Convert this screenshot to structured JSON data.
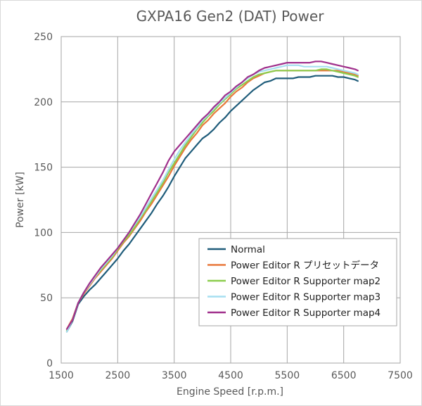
{
  "chart_data": {
    "type": "line",
    "title": "GXPA16 Gen2 (DAT) Power",
    "xlabel": "Engine Speed [r.p.m.]",
    "ylabel": "Power [kW]",
    "xlim": [
      1500,
      7500
    ],
    "ylim": [
      0,
      250
    ],
    "xticks": [
      1500,
      2500,
      3500,
      4500,
      5500,
      6500,
      7500
    ],
    "yticks": [
      0,
      50,
      100,
      150,
      200,
      250
    ],
    "grid": true,
    "legend_position": "bottom-right",
    "series": [
      {
        "name": "Normal",
        "color": "#1f5c7a",
        "x": [
          1600,
          1700,
          1800,
          1900,
          2000,
          2100,
          2200,
          2300,
          2400,
          2500,
          2600,
          2700,
          2800,
          2900,
          3000,
          3100,
          3200,
          3300,
          3400,
          3500,
          3600,
          3700,
          3800,
          3900,
          4000,
          4100,
          4200,
          4300,
          4400,
          4500,
          4600,
          4700,
          4800,
          4900,
          5000,
          5100,
          5200,
          5300,
          5400,
          5500,
          5600,
          5700,
          5800,
          5900,
          6000,
          6100,
          6200,
          6300,
          6400,
          6500,
          6600,
          6700,
          6750
        ],
        "y": [
          24,
          32,
          45,
          51,
          56,
          60,
          65,
          70,
          75,
          80,
          86,
          91,
          97,
          103,
          109,
          115,
          122,
          128,
          135,
          143,
          150,
          157,
          162,
          167,
          172,
          175,
          179,
          184,
          188,
          193,
          197,
          201,
          205,
          209,
          212,
          215,
          216,
          218,
          218,
          218,
          218,
          219,
          219,
          219,
          220,
          220,
          220,
          220,
          219,
          219,
          218,
          217,
          216
        ]
      },
      {
        "name": "Power Editor R プリセットデータ",
        "color": "#e8793b",
        "x": [
          1600,
          1700,
          1800,
          1900,
          2000,
          2100,
          2200,
          2300,
          2400,
          2500,
          2600,
          2700,
          2800,
          2900,
          3000,
          3100,
          3200,
          3300,
          3400,
          3500,
          3600,
          3700,
          3800,
          3900,
          4000,
          4100,
          4200,
          4300,
          4400,
          4500,
          4600,
          4700,
          4800,
          4900,
          5000,
          5100,
          5200,
          5300,
          5400,
          5500,
          5600,
          5700,
          5800,
          5900,
          6000,
          6100,
          6200,
          6300,
          6400,
          6500,
          6600,
          6700,
          6750
        ],
        "y": [
          26,
          34,
          46,
          53,
          59,
          65,
          70,
          75,
          80,
          86,
          92,
          97,
          103,
          109,
          116,
          122,
          129,
          136,
          143,
          151,
          158,
          165,
          171,
          176,
          182,
          186,
          191,
          195,
          199,
          204,
          208,
          211,
          215,
          218,
          220,
          222,
          223,
          224,
          224,
          224,
          224,
          224,
          224,
          224,
          224,
          224,
          224,
          224,
          224,
          223,
          222,
          221,
          220
        ]
      },
      {
        "name": "Power Editor R Supporter map2",
        "color": "#8ccd4e",
        "x": [
          1600,
          1700,
          1800,
          1900,
          2000,
          2100,
          2200,
          2300,
          2400,
          2500,
          2600,
          2700,
          2800,
          2900,
          3000,
          3100,
          3200,
          3300,
          3400,
          3500,
          3600,
          3700,
          3800,
          3900,
          4000,
          4100,
          4200,
          4300,
          4400,
          4500,
          4600,
          4700,
          4800,
          4900,
          5000,
          5100,
          5200,
          5300,
          5400,
          5500,
          5600,
          5700,
          5800,
          5900,
          6000,
          6100,
          6200,
          6300,
          6400,
          6500,
          6600,
          6700,
          6750
        ],
        "y": [
          25,
          33,
          46,
          54,
          60,
          66,
          71,
          76,
          81,
          87,
          93,
          98,
          104,
          111,
          117,
          124,
          131,
          138,
          146,
          153,
          160,
          167,
          173,
          179,
          184,
          189,
          193,
          198,
          202,
          206,
          210,
          213,
          216,
          219,
          221,
          222,
          223,
          224,
          224,
          224,
          224,
          224,
          224,
          224,
          224,
          225,
          225,
          224,
          223,
          222,
          221,
          220,
          219
        ]
      },
      {
        "name": "Power Editor R Supporter map3",
        "color": "#a6dff0",
        "x": [
          1600,
          1700,
          1800,
          1900,
          2000,
          2100,
          2200,
          2300,
          2400,
          2500,
          2600,
          2700,
          2800,
          2900,
          3000,
          3100,
          3200,
          3300,
          3400,
          3500,
          3600,
          3700,
          3800,
          3900,
          4000,
          4100,
          4200,
          4300,
          4400,
          4500,
          4600,
          4700,
          4800,
          4900,
          5000,
          5100,
          5200,
          5300,
          5400,
          5500,
          5600,
          5700,
          5800,
          5900,
          6000,
          6100,
          6200,
          6300,
          6400,
          6500,
          6600,
          6700,
          6750
        ],
        "y": [
          24,
          33,
          46,
          54,
          60,
          66,
          72,
          77,
          82,
          88,
          94,
          100,
          106,
          112,
          119,
          126,
          133,
          140,
          148,
          156,
          163,
          169,
          175,
          180,
          186,
          190,
          195,
          199,
          203,
          207,
          211,
          215,
          218,
          221,
          223,
          224,
          225,
          226,
          227,
          228,
          228,
          228,
          227,
          227,
          227,
          227,
          227,
          226,
          225,
          224,
          223,
          222,
          221
        ]
      },
      {
        "name": "Power Editor R Supporter map4",
        "color": "#a0308c",
        "x": [
          1600,
          1700,
          1800,
          1900,
          2000,
          2100,
          2200,
          2300,
          2400,
          2500,
          2600,
          2700,
          2800,
          2900,
          3000,
          3100,
          3200,
          3300,
          3400,
          3500,
          3600,
          3700,
          3800,
          3900,
          4000,
          4100,
          4200,
          4300,
          4400,
          4500,
          4600,
          4700,
          4800,
          4900,
          5000,
          5100,
          5200,
          5300,
          5400,
          5500,
          5600,
          5700,
          5800,
          5900,
          6000,
          6100,
          6200,
          6300,
          6400,
          6500,
          6600,
          6700,
          6750
        ],
        "y": [
          26,
          33,
          46,
          54,
          61,
          67,
          73,
          78,
          83,
          88,
          94,
          100,
          107,
          114,
          122,
          130,
          138,
          146,
          155,
          162,
          167,
          172,
          177,
          182,
          187,
          191,
          196,
          200,
          205,
          208,
          212,
          215,
          219,
          221,
          224,
          226,
          227,
          228,
          229,
          230,
          230,
          230,
          230,
          230,
          231,
          231,
          230,
          229,
          228,
          227,
          226,
          225,
          224
        ]
      }
    ]
  }
}
